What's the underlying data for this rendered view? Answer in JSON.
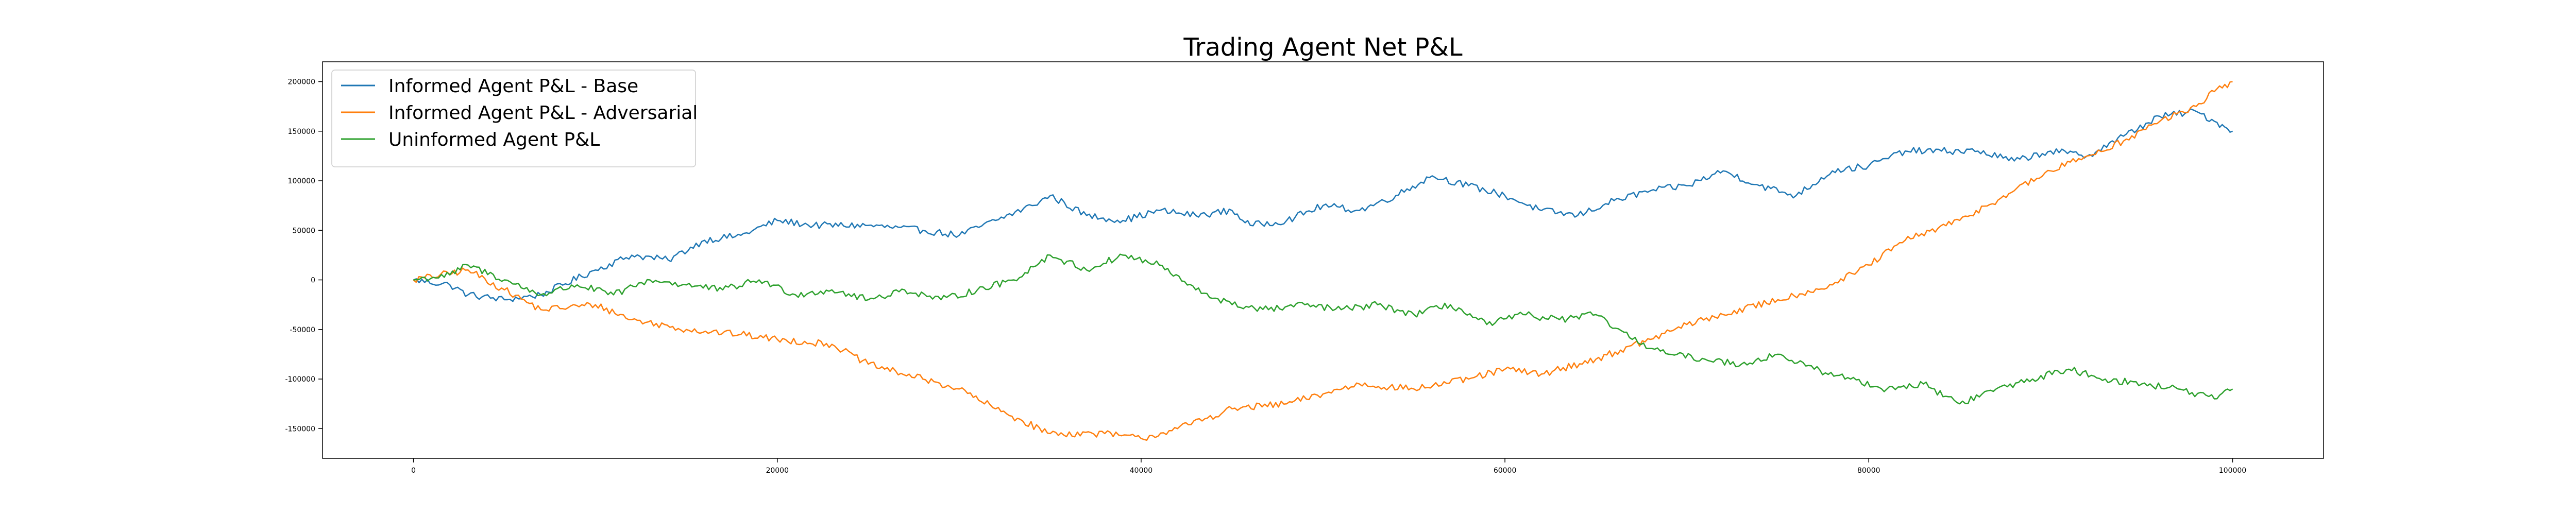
{
  "chart_data": {
    "type": "line",
    "title": "Trading Agent Net P&L",
    "xlabel": "",
    "ylabel": "",
    "xlim": [
      -5000,
      105000
    ],
    "ylim": [
      -180000,
      220000
    ],
    "xticks": [
      0,
      20000,
      40000,
      60000,
      80000,
      100000
    ],
    "yticks": [
      -150000,
      -100000,
      -50000,
      0,
      50000,
      100000,
      150000,
      200000
    ],
    "grid": false,
    "legend_position": "upper-left",
    "series": [
      {
        "name": "Informed Agent P&L - Base",
        "color": "#1f77b4",
        "x": [
          0,
          2000,
          3000,
          5000,
          7000,
          10000,
          12000,
          14000,
          16000,
          18000,
          20000,
          22000,
          25000,
          28000,
          30000,
          32000,
          34000,
          35000,
          37000,
          39000,
          41000,
          43000,
          45000,
          46000,
          48000,
          50000,
          52000,
          54000,
          56000,
          58000,
          60000,
          62000,
          64000,
          66000,
          68000,
          70000,
          72000,
          74000,
          76000,
          78000,
          80000,
          82000,
          84000,
          86000,
          88000,
          90000,
          92000,
          94000,
          96000,
          98000,
          99000,
          100000
        ],
        "y": [
          0,
          -5000,
          -15000,
          -20000,
          -15000,
          10000,
          25000,
          20000,
          40000,
          45000,
          60000,
          55000,
          55000,
          50000,
          45000,
          60000,
          75000,
          85000,
          65000,
          60000,
          70000,
          65000,
          70000,
          55000,
          60000,
          75000,
          70000,
          85000,
          105000,
          95000,
          85000,
          70000,
          65000,
          80000,
          90000,
          95000,
          110000,
          95000,
          85000,
          110000,
          115000,
          130000,
          130000,
          130000,
          120000,
          130000,
          125000,
          145000,
          165000,
          170000,
          160000,
          150000
        ]
      },
      {
        "name": "Informed Agent P&L - Adversarial",
        "color": "#ff7f0e",
        "x": [
          0,
          3000,
          5000,
          7000,
          10000,
          12000,
          15000,
          18000,
          20000,
          23000,
          25000,
          28000,
          30000,
          32000,
          35000,
          38000,
          40000,
          42000,
          45000,
          48000,
          50000,
          52000,
          55000,
          58000,
          60000,
          62000,
          65000,
          68000,
          70000,
          72000,
          75000,
          78000,
          80000,
          82000,
          85000,
          88000,
          90000,
          92000,
          94000,
          96000,
          98000,
          99000,
          100000
        ],
        "y": [
          0,
          10000,
          -10000,
          -30000,
          -25000,
          -40000,
          -50000,
          -55000,
          -60000,
          -65000,
          -85000,
          -100000,
          -110000,
          -130000,
          -155000,
          -155000,
          -160000,
          -150000,
          -130000,
          -125000,
          -115000,
          -105000,
          -110000,
          -100000,
          -90000,
          -95000,
          -80000,
          -60000,
          -45000,
          -35000,
          -20000,
          -5000,
          15000,
          40000,
          60000,
          90000,
          110000,
          125000,
          140000,
          160000,
          175000,
          190000,
          200000
        ]
      },
      {
        "name": "Uninformed Agent P&L",
        "color": "#2ca02c",
        "x": [
          0,
          2000,
          3000,
          5000,
          7000,
          9000,
          11000,
          13000,
          15000,
          17000,
          19000,
          21000,
          23000,
          25000,
          27000,
          29000,
          31000,
          33000,
          35000,
          37000,
          39000,
          41000,
          43000,
          45000,
          47000,
          49000,
          51000,
          53000,
          55000,
          57000,
          59000,
          61000,
          63000,
          65000,
          67000,
          69000,
          71000,
          73000,
          75000,
          77000,
          79000,
          81000,
          83000,
          85000,
          87000,
          89000,
          91000,
          93000,
          95000,
          97000,
          99000,
          100000
        ],
        "y": [
          0,
          5000,
          15000,
          0,
          -15000,
          -5000,
          -15000,
          0,
          -5000,
          -10000,
          0,
          -15000,
          -10000,
          -20000,
          -10000,
          -20000,
          -10000,
          0,
          25000,
          10000,
          25000,
          15000,
          -10000,
          -25000,
          -30000,
          -25000,
          -30000,
          -25000,
          -35000,
          -25000,
          -45000,
          -35000,
          -40000,
          -35000,
          -60000,
          -75000,
          -80000,
          -85000,
          -75000,
          -90000,
          -100000,
          -110000,
          -105000,
          -125000,
          -110000,
          -100000,
          -90000,
          -100000,
          -105000,
          -110000,
          -120000,
          -110000
        ]
      }
    ]
  }
}
